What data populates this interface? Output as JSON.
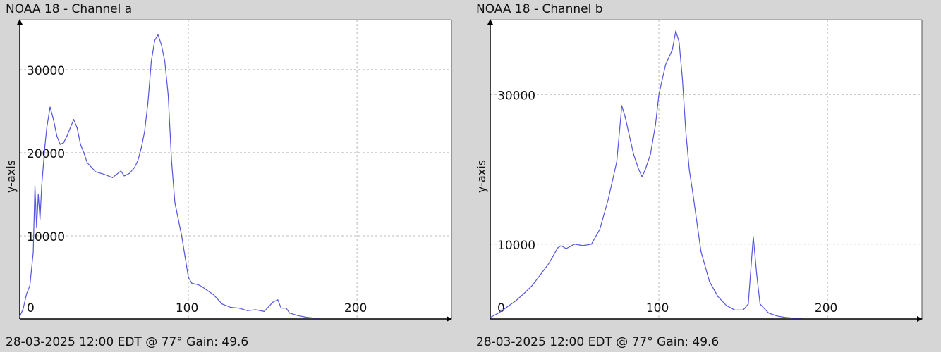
{
  "chart_data": [
    {
      "type": "line",
      "title": "NOAA 18 - Channel a",
      "footer": "28-03-2025 12:00 EDT @ 77° Gain: 49.6",
      "ylabel": "y-axis",
      "xlabel": "",
      "xlim": [
        0,
        256
      ],
      "ylim": [
        0,
        36000
      ],
      "x_ticks": [
        0,
        100,
        200
      ],
      "y_ticks": [
        10000,
        20000,
        30000
      ],
      "grid": true,
      "series_color": "#5555dd",
      "series": [
        {
          "x": [
            0,
            2,
            4,
            6,
            8,
            9,
            10,
            11,
            12,
            13,
            14,
            15,
            16,
            18,
            20,
            22,
            24,
            26,
            28,
            30,
            32,
            34,
            35,
            36,
            38,
            40,
            45,
            50,
            55,
            60,
            62,
            65,
            68,
            70,
            72,
            74,
            76,
            78,
            80,
            82,
            84,
            86,
            88,
            90,
            92,
            94,
            96,
            98,
            100,
            102,
            104,
            106,
            108,
            110,
            115,
            120,
            125,
            130,
            135,
            140,
            145,
            150,
            153,
            155,
            158,
            160,
            165,
            170,
            175,
            178
          ],
          "y": [
            300,
            1200,
            3000,
            4000,
            8000,
            16000,
            11000,
            15000,
            12000,
            16000,
            18500,
            21000,
            23000,
            25500,
            24000,
            22000,
            21000,
            21200,
            22000,
            23000,
            24000,
            23000,
            22000,
            21000,
            20000,
            18800,
            17700,
            17400,
            17000,
            17800,
            17200,
            17500,
            18200,
            19000,
            20500,
            22500,
            26000,
            31000,
            33500,
            34200,
            33000,
            31000,
            27000,
            19000,
            14000,
            12000,
            10000,
            7500,
            5000,
            4300,
            4200,
            4100,
            3900,
            3600,
            2900,
            1800,
            1400,
            1300,
            1000,
            1100,
            900,
            2000,
            2300,
            1300,
            1300,
            700,
            400,
            200,
            100,
            100
          ]
        }
      ]
    },
    {
      "type": "line",
      "title": "NOAA 18 - Channel b",
      "footer": "28-03-2025 12:00 EDT @ 77° Gain: 49.6",
      "ylabel": "y-axis",
      "xlabel": "",
      "xlim": [
        0,
        256
      ],
      "ylim": [
        0,
        40000
      ],
      "x_ticks": [
        0,
        100,
        200
      ],
      "y_ticks": [
        10000,
        30000
      ],
      "grid": true,
      "series_color": "#5555dd",
      "series": [
        {
          "x": [
            0,
            5,
            10,
            15,
            20,
            25,
            30,
            35,
            40,
            42,
            45,
            50,
            55,
            60,
            65,
            70,
            75,
            78,
            80,
            82,
            85,
            88,
            90,
            92,
            95,
            98,
            100,
            102,
            104,
            106,
            108,
            110,
            112,
            114,
            116,
            118,
            120,
            125,
            130,
            135,
            140,
            145,
            150,
            153,
            155,
            156,
            158,
            160,
            165,
            170,
            175,
            180,
            185
          ],
          "y": [
            200,
            800,
            1600,
            2400,
            3400,
            4500,
            6000,
            7500,
            9500,
            9800,
            9400,
            10000,
            9800,
            10000,
            12000,
            16000,
            21000,
            28500,
            27000,
            25000,
            22000,
            20000,
            19000,
            20000,
            22000,
            26000,
            30000,
            32000,
            34000,
            35000,
            36000,
            38500,
            37000,
            32000,
            25000,
            20000,
            17000,
            9000,
            5000,
            3000,
            1800,
            1200,
            1200,
            2000,
            8000,
            11000,
            6000,
            2000,
            800,
            400,
            200,
            100,
            100
          ]
        }
      ]
    }
  ]
}
